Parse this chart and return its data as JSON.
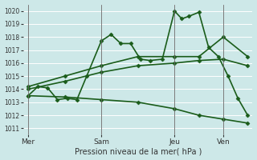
{
  "background_color": "#cde8e8",
  "grid_color": "#ffffff",
  "line_color": "#1a5c1a",
  "title": "Pression niveau de la mer( hPa )",
  "ylabel_ticks": [
    1011,
    1012,
    1013,
    1014,
    1015,
    1016,
    1017,
    1018,
    1019,
    1020
  ],
  "ylim": [
    1010.5,
    1020.5
  ],
  "x_tick_labels": [
    "Mer",
    "Sam",
    "Jeu",
    "Ven"
  ],
  "x_tick_positions": [
    0,
    3,
    6,
    8
  ],
  "x_vlines": [
    0,
    3,
    6,
    8
  ],
  "xlim": [
    -0.2,
    9.2
  ],
  "series": [
    {
      "x": [
        0,
        0.4,
        0.8,
        1.2,
        1.6,
        2.0,
        2.4,
        3.0,
        3.4,
        3.8,
        4.2,
        4.6,
        5.0,
        5.5,
        6.0,
        6.3,
        6.6,
        7.0,
        7.4,
        7.8,
        8.2,
        8.6,
        9.0
      ],
      "y": [
        1013.5,
        1014.2,
        1014.1,
        1013.2,
        1013.3,
        1013.2,
        1015.0,
        1017.7,
        1018.2,
        1017.5,
        1017.5,
        1016.3,
        1016.2,
        1016.3,
        1020.0,
        1019.4,
        1019.6,
        1019.9,
        1017.2,
        1016.5,
        1015.0,
        1013.3,
        1012.0
      ],
      "marker": "D",
      "markersize": 2.5,
      "linewidth": 1.2
    },
    {
      "x": [
        0,
        1.5,
        3.0,
        4.5,
        6.0,
        7.0,
        8.0,
        9.0
      ],
      "y": [
        1014.2,
        1015.0,
        1015.8,
        1016.5,
        1016.5,
        1016.5,
        1018.0,
        1016.5
      ],
      "marker": "D",
      "markersize": 2.5,
      "linewidth": 1.2
    },
    {
      "x": [
        0,
        1.5,
        3.0,
        4.5,
        6.0,
        7.0,
        8.0,
        9.0
      ],
      "y": [
        1014.0,
        1014.6,
        1015.3,
        1015.8,
        1016.0,
        1016.2,
        1016.3,
        1015.8
      ],
      "marker": "D",
      "markersize": 2.5,
      "linewidth": 1.2
    },
    {
      "x": [
        0,
        1.5,
        3.0,
        4.5,
        6.0,
        7.0,
        8.0,
        9.0
      ],
      "y": [
        1013.5,
        1013.4,
        1013.2,
        1013.0,
        1012.5,
        1012.0,
        1011.7,
        1011.4
      ],
      "marker": "D",
      "markersize": 2.5,
      "linewidth": 1.2
    }
  ]
}
